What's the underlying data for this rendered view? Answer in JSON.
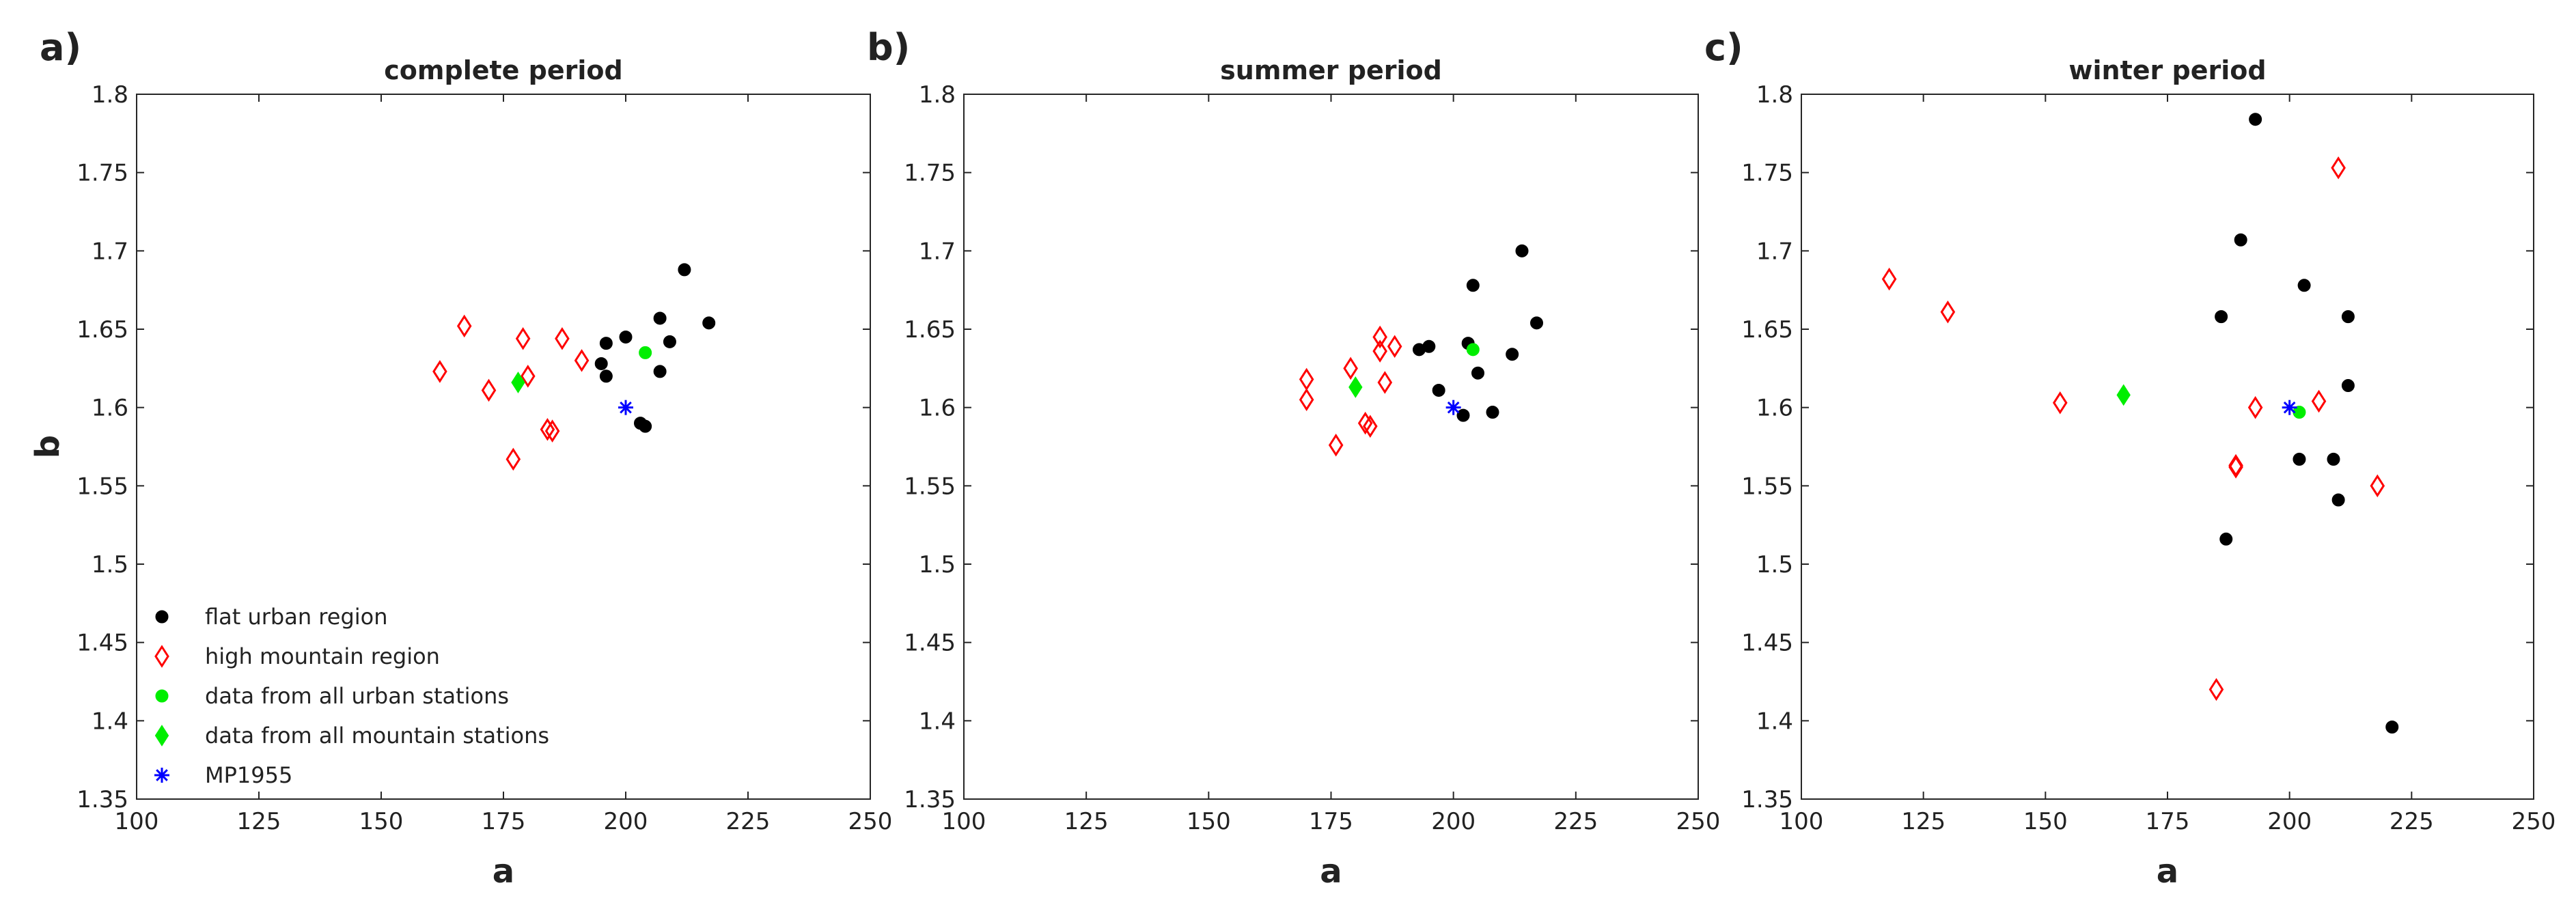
{
  "panels": [
    {
      "letter": "a)",
      "title": "complete period",
      "xlabel": "a",
      "ylabel": "b",
      "legend": [
        {
          "label": "flat urban region",
          "marker": "dot",
          "color": "#000000"
        },
        {
          "label": "high mountain region",
          "marker": "diamond-open",
          "color": "#ff0000"
        },
        {
          "label": "data from all urban stations",
          "marker": "dot",
          "color": "#00ee00"
        },
        {
          "label": "data from all mountain stations",
          "marker": "diamond-filled",
          "color": "#00ee00"
        },
        {
          "label": "MP1955",
          "marker": "star",
          "color": "#0000ff"
        }
      ]
    },
    {
      "letter": "b)",
      "title": "summer period",
      "xlabel": "a",
      "ylabel": ""
    },
    {
      "letter": "c)",
      "title": "winter period",
      "xlabel": "a",
      "ylabel": ""
    }
  ],
  "chart_data": [
    {
      "type": "scatter",
      "title": "complete period",
      "xlabel": "a",
      "ylabel": "b",
      "xlim": [
        100,
        250
      ],
      "ylim": [
        1.35,
        1.8
      ],
      "xticks": [
        100,
        125,
        150,
        175,
        200,
        225,
        250
      ],
      "yticks": [
        1.35,
        1.4,
        1.45,
        1.5,
        1.55,
        1.6,
        1.65,
        1.7,
        1.75,
        1.8
      ],
      "grid": false,
      "legend_position": "bottom-left",
      "series": [
        {
          "name": "flat urban region",
          "marker": "dot",
          "color": "#000000",
          "points": [
            [
              195,
              1.628
            ],
            [
              196,
              1.62
            ],
            [
              196,
              1.641
            ],
            [
              200,
              1.645
            ],
            [
              203,
              1.59
            ],
            [
              204,
              1.588
            ],
            [
              207,
              1.657
            ],
            [
              207,
              1.623
            ],
            [
              209,
              1.642
            ],
            [
              212,
              1.688
            ],
            [
              217,
              1.654
            ]
          ]
        },
        {
          "name": "high mountain region",
          "marker": "diamond-open",
          "color": "#ff0000",
          "points": [
            [
              162,
              1.623
            ],
            [
              167,
              1.652
            ],
            [
              172,
              1.611
            ],
            [
              177,
              1.567
            ],
            [
              179,
              1.644
            ],
            [
              180,
              1.62
            ],
            [
              184,
              1.586
            ],
            [
              185,
              1.585
            ],
            [
              187,
              1.644
            ],
            [
              191,
              1.63
            ]
          ]
        },
        {
          "name": "data from all urban stations",
          "marker": "dot",
          "color": "#00ee00",
          "points": [
            [
              204,
              1.635
            ]
          ]
        },
        {
          "name": "data from all mountain stations",
          "marker": "diamond-filled",
          "color": "#00ee00",
          "points": [
            [
              178,
              1.616
            ]
          ]
        },
        {
          "name": "MP1955",
          "marker": "star",
          "color": "#0000ff",
          "points": [
            [
              200,
              1.6
            ]
          ]
        }
      ]
    },
    {
      "type": "scatter",
      "title": "summer period",
      "xlabel": "a",
      "ylabel": "",
      "xlim": [
        100,
        250
      ],
      "ylim": [
        1.35,
        1.8
      ],
      "xticks": [
        100,
        125,
        150,
        175,
        200,
        225,
        250
      ],
      "yticks": [
        1.35,
        1.4,
        1.45,
        1.5,
        1.55,
        1.6,
        1.65,
        1.7,
        1.75,
        1.8
      ],
      "grid": false,
      "series": [
        {
          "name": "flat urban region",
          "marker": "dot",
          "color": "#000000",
          "points": [
            [
              193,
              1.637
            ],
            [
              195,
              1.639
            ],
            [
              197,
              1.611
            ],
            [
              202,
              1.595
            ],
            [
              203,
              1.641
            ],
            [
              204,
              1.678
            ],
            [
              205,
              1.622
            ],
            [
              208,
              1.597
            ],
            [
              212,
              1.634
            ],
            [
              214,
              1.7
            ],
            [
              217,
              1.654
            ]
          ]
        },
        {
          "name": "high mountain region",
          "marker": "diamond-open",
          "color": "#ff0000",
          "points": [
            [
              170,
              1.618
            ],
            [
              170,
              1.605
            ],
            [
              176,
              1.576
            ],
            [
              179,
              1.625
            ],
            [
              182,
              1.59
            ],
            [
              183,
              1.588
            ],
            [
              185,
              1.645
            ],
            [
              185,
              1.636
            ],
            [
              186,
              1.616
            ],
            [
              188,
              1.639
            ]
          ]
        },
        {
          "name": "data from all urban stations",
          "marker": "dot",
          "color": "#00ee00",
          "points": [
            [
              204,
              1.637
            ]
          ]
        },
        {
          "name": "data from all mountain stations",
          "marker": "diamond-filled",
          "color": "#00ee00",
          "points": [
            [
              180,
              1.613
            ]
          ]
        },
        {
          "name": "MP1955",
          "marker": "star",
          "color": "#0000ff",
          "points": [
            [
              200,
              1.6
            ]
          ]
        }
      ]
    },
    {
      "type": "scatter",
      "title": "winter period",
      "xlabel": "a",
      "ylabel": "",
      "xlim": [
        100,
        250
      ],
      "ylim": [
        1.35,
        1.8
      ],
      "xticks": [
        100,
        125,
        150,
        175,
        200,
        225,
        250
      ],
      "yticks": [
        1.35,
        1.4,
        1.45,
        1.5,
        1.55,
        1.6,
        1.65,
        1.7,
        1.75,
        1.8
      ],
      "grid": false,
      "series": [
        {
          "name": "flat urban region",
          "marker": "dot",
          "color": "#000000",
          "points": [
            [
              186,
              1.658
            ],
            [
              187,
              1.516
            ],
            [
              190,
              1.707
            ],
            [
              193,
              1.784
            ],
            [
              202,
              1.567
            ],
            [
              203,
              1.678
            ],
            [
              209,
              1.567
            ],
            [
              210,
              1.541
            ],
            [
              212,
              1.658
            ],
            [
              212,
              1.614
            ],
            [
              221,
              1.396
            ]
          ]
        },
        {
          "name": "high mountain region",
          "marker": "diamond-open",
          "color": "#ff0000",
          "points": [
            [
              118,
              1.682
            ],
            [
              130,
              1.661
            ],
            [
              153,
              1.603
            ],
            [
              185,
              1.42
            ],
            [
              189,
              1.563
            ],
            [
              189,
              1.562
            ],
            [
              193,
              1.6
            ],
            [
              206,
              1.604
            ],
            [
              210,
              1.753
            ],
            [
              218,
              1.55
            ]
          ]
        },
        {
          "name": "data from all urban stations",
          "marker": "dot",
          "color": "#00ee00",
          "points": [
            [
              202,
              1.597
            ]
          ]
        },
        {
          "name": "data from all mountain stations",
          "marker": "diamond-filled",
          "color": "#00ee00",
          "points": [
            [
              166,
              1.608
            ]
          ]
        },
        {
          "name": "MP1955",
          "marker": "star",
          "color": "#0000ff",
          "points": [
            [
              200,
              1.6
            ]
          ]
        }
      ]
    }
  ]
}
